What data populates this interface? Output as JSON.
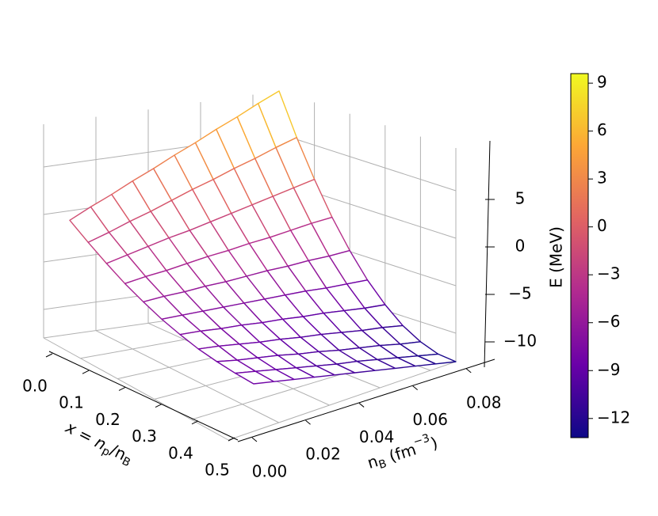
{
  "chart_data": {
    "type": "surface3d",
    "x_label_parts": [
      "x = n",
      "p",
      "/n",
      "B"
    ],
    "y_label_parts": [
      "n",
      "B",
      " (fm",
      "−3",
      ")"
    ],
    "z_label": "E (MeV)",
    "x": [
      0,
      0.05,
      0.1,
      0.15,
      0.2,
      0.25,
      0.3,
      0.35,
      0.4,
      0.45,
      0.5
    ],
    "y": [
      0.01,
      0.018,
      0.026,
      0.034,
      0.042,
      0.05,
      0.058,
      0.066,
      0.074,
      0.082,
      0.09
    ],
    "z": [
      [
        -1.0,
        0.1,
        1.1,
        2.2,
        3.2,
        4.3,
        5.3,
        6.4,
        7.4,
        8.5,
        9.5
      ],
      [
        -2.3,
        -1.6,
        -0.8,
        -0.1,
        0.7,
        1.5,
        2.2,
        3.0,
        3.7,
        4.5,
        5.2
      ],
      [
        -3.5,
        -3.0,
        -2.5,
        -2.0,
        -1.6,
        -1.1,
        -0.6,
        -0.1,
        0.4,
        0.9,
        1.4
      ],
      [
        -4.6,
        -4.3,
        -4.1,
        -3.8,
        -3.5,
        -3.3,
        -3.0,
        -2.8,
        -2.5,
        -2.2,
        -2.0
      ],
      [
        -5.5,
        -5.4,
        -5.4,
        -5.3,
        -5.3,
        -5.2,
        -5.1,
        -5.1,
        -5.0,
        -5.0,
        -4.9
      ],
      [
        -6.3,
        -6.4,
        -6.5,
        -6.6,
        -6.7,
        -6.8,
        -6.9,
        -7.0,
        -7.2,
        -7.3,
        -7.4
      ],
      [
        -6.9,
        -7.1,
        -7.4,
        -7.6,
        -7.9,
        -8.1,
        -8.4,
        -8.6,
        -8.9,
        -9.2,
        -9.4
      ],
      [
        -7.4,
        -7.7,
        -8.1,
        -8.5,
        -8.8,
        -9.2,
        -9.5,
        -9.9,
        -10.3,
        -10.6,
        -11.0
      ],
      [
        -7.7,
        -8.2,
        -8.6,
        -9.0,
        -9.5,
        -9.9,
        -10.4,
        -10.8,
        -11.2,
        -11.7,
        -12.1
      ],
      [
        -7.9,
        -8.4,
        -8.9,
        -9.4,
        -9.9,
        -10.4,
        -10.8,
        -11.3,
        -11.8,
        -12.3,
        -12.8
      ],
      [
        -8.0,
        -8.5,
        -9.0,
        -9.5,
        -10.0,
        -10.5,
        -11.0,
        -11.5,
        -12.0,
        -12.5,
        -13.0
      ]
    ],
    "xlim": [
      0,
      0.5
    ],
    "ylim": [
      0,
      0.09
    ],
    "zlim": [
      -13,
      9.5
    ],
    "xticks": [
      {
        "value": 0,
        "label": "0.0"
      },
      {
        "value": 0.1,
        "label": "0.1"
      },
      {
        "value": 0.2,
        "label": "0.2"
      },
      {
        "value": 0.3,
        "label": "0.3"
      },
      {
        "value": 0.4,
        "label": "0.4"
      },
      {
        "value": 0.5,
        "label": "0.5"
      }
    ],
    "yticks": [
      {
        "value": 0,
        "label": "0.00"
      },
      {
        "value": 0.02,
        "label": "0.02"
      },
      {
        "value": 0.04,
        "label": "0.04"
      },
      {
        "value": 0.06,
        "label": "0.06"
      },
      {
        "value": 0.08,
        "label": "0.08"
      }
    ],
    "zticks": [
      {
        "value": -10,
        "label": "−10"
      },
      {
        "value": -5,
        "label": "−5"
      },
      0,
      5
    ],
    "grid": true,
    "colorbar": {
      "clim": [
        -13.2,
        9.6
      ],
      "ticks": [
        {
          "value": -12,
          "label": "−12"
        },
        {
          "value": -9,
          "label": "−9"
        },
        {
          "value": -6,
          "label": "−6"
        },
        {
          "value": -3,
          "label": "−3"
        },
        0,
        3,
        6,
        9
      ],
      "colors": [
        "#0d0887",
        "#6a00a8",
        "#b12a90",
        "#e16462",
        "#fca636",
        "#f0f921"
      ]
    }
  }
}
